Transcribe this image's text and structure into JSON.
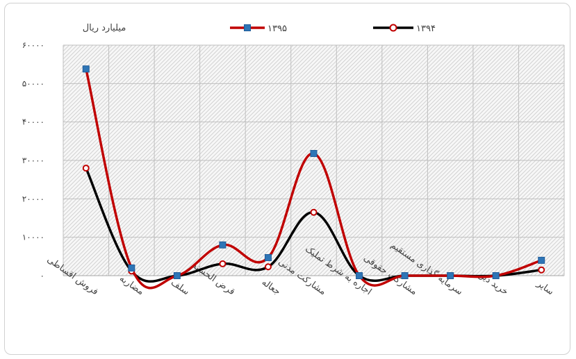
{
  "chart_data": {
    "type": "line",
    "unit_label": "میلیارد ریال",
    "categories": [
      "فروش اقساطی",
      "مضاربه",
      "سلف",
      "قرض الحسنه",
      "جعاله",
      "مشارکت مدنی",
      "اجاره به شرط تملیک",
      "مشارکت حقوقی",
      "سرمایه گذاری مستقیم",
      "خرید دین",
      "سایر"
    ],
    "y_ticks": [
      "۰",
      "۱۰۰۰۰",
      "۲۰۰۰۰",
      "۳۰۰۰۰",
      "۴۰۰۰۰",
      "۵۰۰۰۰",
      "۶۰۰۰۰"
    ],
    "ylim": [
      0,
      60000
    ],
    "grid": true,
    "legend_position": "top",
    "series": [
      {
        "name": "۱۳۹۵",
        "color": "#c00000",
        "marker": "square",
        "marker_color": "#2e75b6",
        "values": [
          53800,
          2000,
          0,
          8000,
          4700,
          31800,
          0,
          0,
          0,
          0,
          4000
        ]
      },
      {
        "name": "۱۳۹۴",
        "color": "#000000",
        "marker": "circle",
        "marker_color": "#c00000",
        "values": [
          28000,
          1200,
          0,
          3100,
          2300,
          16500,
          0,
          0,
          0,
          0,
          1500
        ]
      }
    ]
  }
}
